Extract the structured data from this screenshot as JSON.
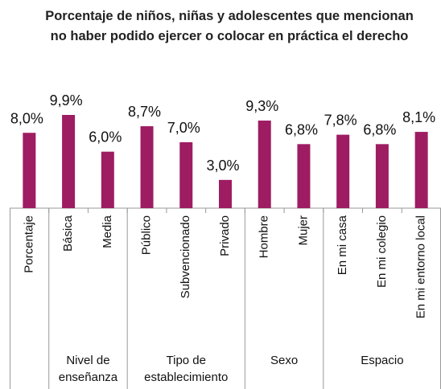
{
  "chart_data": {
    "type": "bar",
    "title": "Porcentaje de niños, niñas y adolescentes que mencionan no haber podido ejercer o colocar en práctica el derecho",
    "categories": [
      "Porcentaje",
      "Básica",
      "Media",
      "Público",
      "Subvencionado",
      "Privado",
      "Hombre",
      "Mujer",
      "En mi casa",
      "En mi colegio",
      "En mi entorno local"
    ],
    "values": [
      8.0,
      9.9,
      6.0,
      8.7,
      7.0,
      3.0,
      9.3,
      6.8,
      7.8,
      6.8,
      8.1
    ],
    "value_labels": [
      "8,0%",
      "9,9%",
      "6,0%",
      "8,7%",
      "7,0%",
      "3,0%",
      "9,3%",
      "6,8%",
      "7,8%",
      "6,8%",
      "8,1%"
    ],
    "groups": [
      {
        "label": null,
        "size": 1
      },
      {
        "label": "Nivel de enseñanza",
        "size": 2
      },
      {
        "label": "Tipo de establecimiento",
        "size": 3
      },
      {
        "label": "Sexo",
        "size": 2
      },
      {
        "label": "Espacio",
        "size": 3
      }
    ],
    "color": "#9e1c62"
  }
}
